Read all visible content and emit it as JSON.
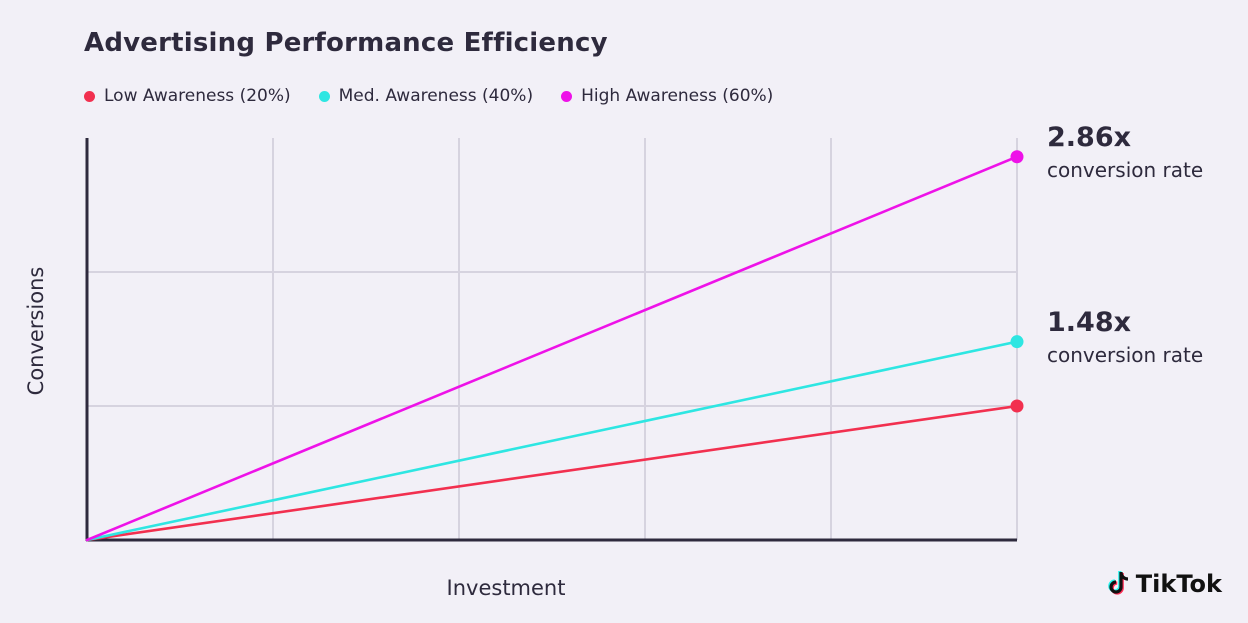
{
  "chart_data": {
    "type": "line",
    "title": "Advertising Performance Efficiency",
    "xlabel": "Investment",
    "ylabel": "Conversions",
    "x": [
      0,
      1
    ],
    "ylim": [
      0,
      3.0
    ],
    "grid": true,
    "legend_position": "top-left",
    "series": [
      {
        "name": "Low Awareness (20%)",
        "color": "#f2304f",
        "values": [
          0,
          1.0
        ]
      },
      {
        "name": "Med. Awareness (40%)",
        "color": "#2ee6e2",
        "values": [
          0,
          1.48
        ]
      },
      {
        "name": "High Awareness (60%)",
        "color": "#ee12e8",
        "values": [
          0,
          2.86
        ]
      }
    ],
    "annotations": [
      {
        "series": "High Awareness (60%)",
        "value": "2.86x",
        "text": "conversion rate"
      },
      {
        "series": "Med. Awareness (40%)",
        "value": "1.48x",
        "text": "conversion rate"
      }
    ]
  },
  "brand": {
    "name": "TikTok",
    "logo_icon": "tiktok-note-icon"
  },
  "colors": {
    "background": "#f2f0f7",
    "axis": "#2e2a3d",
    "grid": "#d6d3df"
  }
}
